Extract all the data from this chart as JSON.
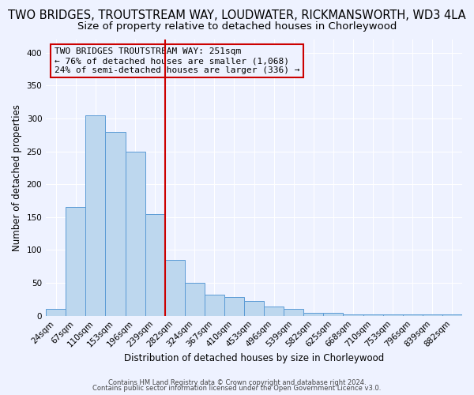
{
  "title": "TWO BRIDGES, TROUTSTREAM WAY, LOUDWATER, RICKMANSWORTH, WD3 4LA",
  "subtitle": "Size of property relative to detached houses in Chorleywood",
  "xlabel": "Distribution of detached houses by size in Chorleywood",
  "ylabel": "Number of detached properties",
  "bin_labels": [
    "24sqm",
    "67sqm",
    "110sqm",
    "153sqm",
    "196sqm",
    "239sqm",
    "282sqm",
    "324sqm",
    "367sqm",
    "410sqm",
    "453sqm",
    "496sqm",
    "539sqm",
    "582sqm",
    "625sqm",
    "668sqm",
    "710sqm",
    "753sqm",
    "796sqm",
    "839sqm",
    "882sqm"
  ],
  "bar_heights": [
    10,
    165,
    305,
    280,
    250,
    155,
    85,
    50,
    32,
    28,
    22,
    14,
    10,
    5,
    5,
    2,
    2,
    2,
    2,
    2,
    2
  ],
  "bar_color": "#bdd7ee",
  "bar_edge_color": "#5b9bd5",
  "vline_position": 5.5,
  "vline_color": "#cc0000",
  "ylim": [
    0,
    420
  ],
  "yticks": [
    0,
    50,
    100,
    150,
    200,
    250,
    300,
    350,
    400
  ],
  "annotation_title": "TWO BRIDGES TROUTSTREAM WAY: 251sqm",
  "annotation_line1": "← 76% of detached houses are smaller (1,068)",
  "annotation_line2": "24% of semi-detached houses are larger (336) →",
  "footer1": "Contains HM Land Registry data © Crown copyright and database right 2024.",
  "footer2": "Contains public sector information licensed under the Open Government Licence v3.0.",
  "background_color": "#eef2ff",
  "grid_color": "#ffffff",
  "title_fontsize": 10.5,
  "subtitle_fontsize": 9.5,
  "axis_label_fontsize": 8.5,
  "tick_fontsize": 7.5,
  "annotation_fontsize": 8,
  "footer_fontsize": 6
}
